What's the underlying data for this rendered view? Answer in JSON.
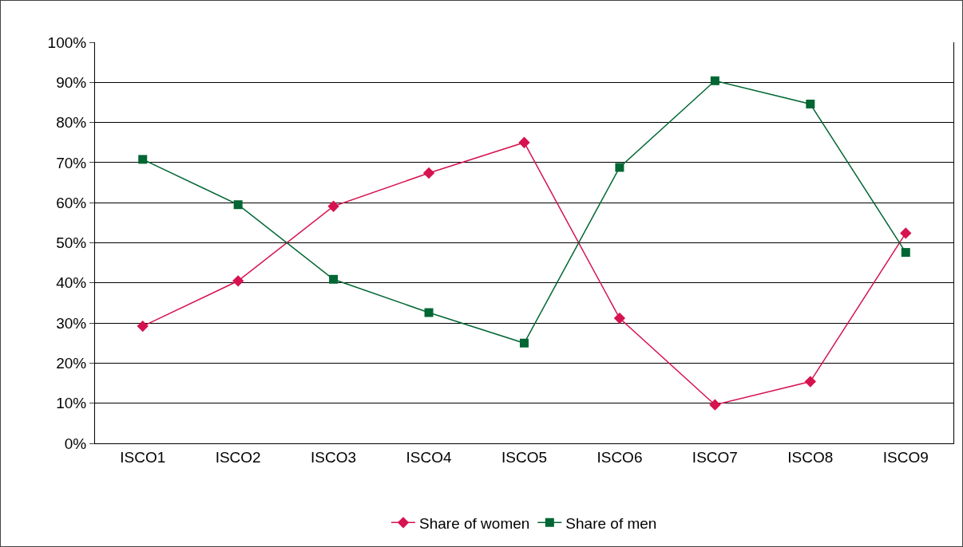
{
  "chart_data": {
    "type": "line",
    "categories": [
      "ISCO1",
      "ISCO2",
      "ISCO3",
      "ISCO4",
      "ISCO5",
      "ISCO6",
      "ISCO7",
      "ISCO8",
      "ISCO9"
    ],
    "series": [
      {
        "name": "Share of women",
        "color": "#d6124f",
        "marker": "diamond",
        "values": [
          29.2,
          40.5,
          59.1,
          67.4,
          75,
          31.2,
          9.6,
          15.4,
          52.4
        ]
      },
      {
        "name": "Share of men",
        "color": "#006633",
        "marker": "square",
        "values": [
          70.8,
          59.5,
          40.9,
          32.6,
          25,
          68.8,
          90.4,
          84.6,
          47.6
        ]
      }
    ],
    "ylim": [
      0,
      100
    ],
    "yticks": [
      {
        "value": 0,
        "label": "0%"
      },
      {
        "value": 10,
        "label": "10%"
      },
      {
        "value": 20,
        "label": "20%"
      },
      {
        "value": 30,
        "label": "30%"
      },
      {
        "value": 40,
        "label": "40%"
      },
      {
        "value": 50,
        "label": "50%"
      },
      {
        "value": 60,
        "label": "60%"
      },
      {
        "value": 70,
        "label": "70%"
      },
      {
        "value": 80,
        "label": "80%"
      },
      {
        "value": 90,
        "label": "90%"
      },
      {
        "value": 100,
        "label": "100%"
      }
    ],
    "grid": "y",
    "legend": "bottom",
    "line_style": "solid"
  }
}
